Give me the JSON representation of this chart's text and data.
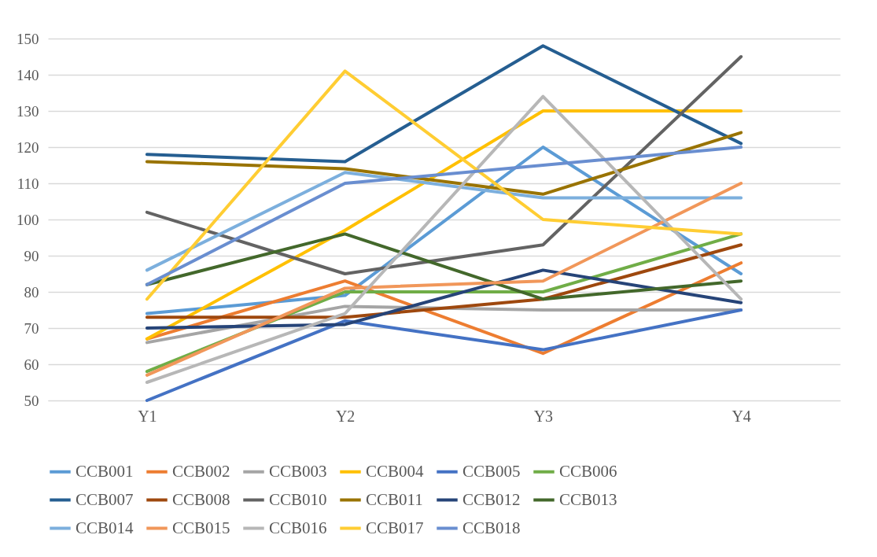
{
  "chart_data": {
    "type": "line",
    "categories": [
      "Y1",
      "Y2",
      "Y3",
      "Y4"
    ],
    "ylim": [
      50,
      150
    ],
    "yticks": [
      50,
      60,
      70,
      80,
      90,
      100,
      110,
      120,
      130,
      140,
      150
    ],
    "grid": "y",
    "legend": "bottom",
    "marker": "none",
    "line_style": "solid",
    "series": [
      {
        "name": "CCB001",
        "color": "#5b9bd5",
        "values": [
          74,
          79,
          120,
          85
        ]
      },
      {
        "name": "CCB002",
        "color": "#ed7d31",
        "values": [
          67,
          83,
          63,
          88
        ]
      },
      {
        "name": "CCB003",
        "color": "#a5a5a5",
        "values": [
          66,
          76,
          75,
          75
        ]
      },
      {
        "name": "CCB004",
        "color": "#ffc000",
        "values": [
          67,
          97,
          130,
          130
        ]
      },
      {
        "name": "CCB005",
        "color": "#4472c4",
        "values": [
          50,
          72,
          64,
          75
        ]
      },
      {
        "name": "CCB006",
        "color": "#70ad47",
        "values": [
          58,
          80,
          80,
          96
        ]
      },
      {
        "name": "CCB007",
        "color": "#255e91",
        "values": [
          118,
          116,
          148,
          121
        ]
      },
      {
        "name": "CCB008",
        "color": "#9e480e",
        "values": [
          73,
          73,
          78,
          93
        ]
      },
      {
        "name": "CCB010",
        "color": "#636363",
        "values": [
          102,
          85,
          93,
          145
        ]
      },
      {
        "name": "CCB011",
        "color": "#997300",
        "values": [
          116,
          114,
          107,
          124
        ]
      },
      {
        "name": "CCB012",
        "color": "#264478",
        "values": [
          70,
          71,
          86,
          77
        ]
      },
      {
        "name": "CCB013",
        "color": "#43682b",
        "values": [
          82,
          96,
          78,
          83
        ]
      },
      {
        "name": "CCB014",
        "color": "#7cafdd",
        "values": [
          86,
          113,
          106,
          106
        ]
      },
      {
        "name": "CCB015",
        "color": "#f1975a",
        "values": [
          57,
          81,
          83,
          110
        ]
      },
      {
        "name": "CCB016",
        "color": "#b7b7b7",
        "values": [
          55,
          74,
          134,
          78
        ]
      },
      {
        "name": "CCB017",
        "color": "#ffcd33",
        "values": [
          78,
          141,
          100,
          96
        ]
      },
      {
        "name": "CCB018",
        "color": "#698ed0",
        "values": [
          82,
          110,
          115,
          120
        ]
      }
    ]
  }
}
